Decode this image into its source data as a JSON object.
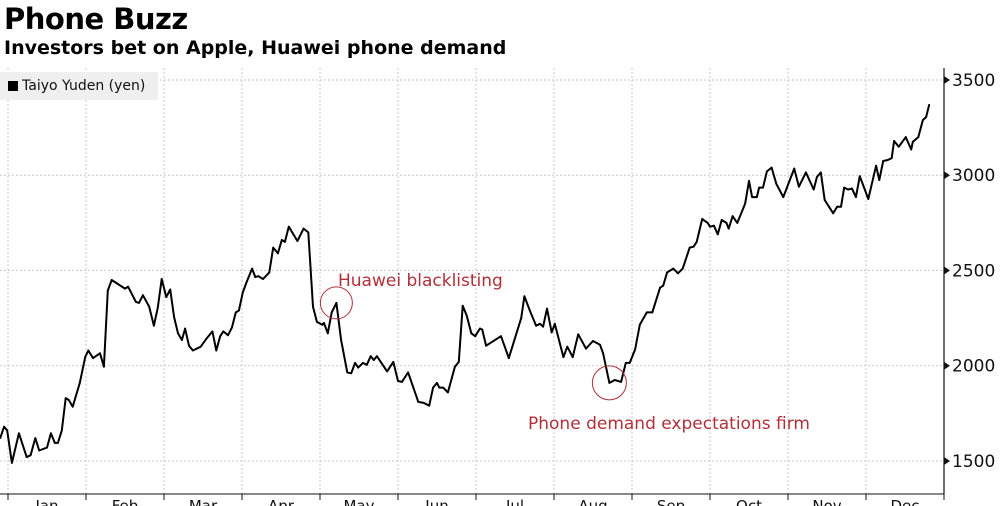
{
  "chart_data": {
    "type": "line",
    "title": "Phone Buzz",
    "subtitle": "Investors bet on Apple, Huawei phone demand",
    "xlabel": "",
    "ylabel": "",
    "x_unit": "months elapsed since the first labeled month tick",
    "x_tick_labels": [
      "Jan",
      "Feb",
      "Mar",
      "Apr",
      "May",
      "Jun",
      "Jul",
      "Aug",
      "Sep",
      "Oct",
      "Nov",
      "Dec"
    ],
    "y_ticks": [
      1500,
      2000,
      2500,
      3000,
      3500
    ],
    "ylim": [
      1280,
      3560
    ],
    "grid": true,
    "legend_position": "top-left",
    "series": [
      {
        "name": "Taiyo Yuden (yen)",
        "color": "#000000",
        "x": [
          -0.1,
          -0.05,
          -0.01,
          0.05,
          0.14,
          0.24,
          0.29,
          0.35,
          0.4,
          0.5,
          0.55,
          0.6,
          0.64,
          0.69,
          0.74,
          0.78,
          0.83,
          0.92,
          0.99,
          1.03,
          1.09,
          1.18,
          1.23,
          1.28,
          1.33,
          1.5,
          1.54,
          1.64,
          1.68,
          1.73,
          1.81,
          1.87,
          1.92,
          1.97,
          2.03,
          2.08,
          2.13,
          2.18,
          2.23,
          2.27,
          2.32,
          2.37,
          2.47,
          2.55,
          2.62,
          2.67,
          2.72,
          2.76,
          2.82,
          2.87,
          2.92,
          2.96,
          3.01,
          3.06,
          3.13,
          3.17,
          3.21,
          3.27,
          3.35,
          3.4,
          3.46,
          3.51,
          3.55,
          3.6,
          3.71,
          3.79,
          3.85,
          3.91,
          3.96,
          4.03,
          4.05,
          4.1,
          4.15,
          4.21,
          4.27,
          4.35,
          4.4,
          4.45,
          4.49,
          4.55,
          4.6,
          4.65,
          4.69,
          4.73,
          4.86,
          4.94,
          5.0,
          5.05,
          5.13,
          5.26,
          5.33,
          5.4,
          5.45,
          5.5,
          5.53,
          5.58,
          5.64,
          5.73,
          5.78,
          5.83,
          5.88,
          5.94,
          5.99,
          6.05,
          6.08,
          6.13,
          6.32,
          6.42,
          6.58,
          6.62,
          6.69,
          6.77,
          6.82,
          6.86,
          6.91,
          6.97,
          7.01,
          7.12,
          7.17,
          7.24,
          7.31,
          7.41,
          7.5,
          7.59,
          7.63,
          7.71,
          7.78,
          7.86,
          7.92,
          7.97,
          8.04,
          8.1,
          8.19,
          8.26,
          8.36,
          8.4,
          8.45,
          8.53,
          8.59,
          8.65,
          8.74,
          8.79,
          8.83,
          8.9,
          8.97,
          9.0,
          9.05,
          9.1,
          9.15,
          9.21,
          9.24,
          9.29,
          9.35,
          9.45,
          9.5,
          9.54,
          9.6,
          9.63,
          9.68,
          9.73,
          9.79,
          9.85,
          9.94,
          10.08,
          10.14,
          10.23,
          10.33,
          10.37,
          10.42,
          10.47,
          10.58,
          10.63,
          10.68,
          10.72,
          10.77,
          10.82,
          10.87,
          10.92,
          11.03,
          11.13,
          11.17,
          11.22,
          11.28,
          11.33,
          11.36,
          11.42,
          11.51,
          11.58,
          11.6,
          11.67,
          11.73,
          11.77,
          11.81
        ],
        "values": [
          1620,
          1680,
          1660,
          1490,
          1645,
          1520,
          1530,
          1620,
          1555,
          1570,
          1645,
          1595,
          1595,
          1660,
          1830,
          1820,
          1785,
          1910,
          2045,
          2080,
          2040,
          2065,
          1995,
          2395,
          2450,
          2405,
          2415,
          2335,
          2330,
          2370,
          2310,
          2210,
          2305,
          2455,
          2360,
          2400,
          2255,
          2170,
          2135,
          2195,
          2105,
          2080,
          2100,
          2145,
          2180,
          2080,
          2155,
          2180,
          2160,
          2200,
          2280,
          2290,
          2385,
          2440,
          2510,
          2465,
          2470,
          2455,
          2490,
          2620,
          2590,
          2660,
          2650,
          2730,
          2655,
          2720,
          2700,
          2310,
          2230,
          2215,
          2225,
          2170,
          2280,
          2330,
          2135,
          1965,
          1960,
          2015,
          1990,
          2015,
          2005,
          2050,
          2030,
          2050,
          1970,
          2020,
          1920,
          1915,
          1965,
          1810,
          1805,
          1790,
          1885,
          1910,
          1885,
          1885,
          1860,
          1995,
          2020,
          2315,
          2265,
          2170,
          2155,
          2195,
          2190,
          2105,
          2155,
          2040,
          2250,
          2365,
          2290,
          2210,
          2220,
          2205,
          2300,
          2175,
          2220,
          2045,
          2100,
          2045,
          2165,
          2090,
          2130,
          2110,
          2065,
          1910,
          1925,
          1915,
          2015,
          2015,
          2085,
          2215,
          2280,
          2280,
          2410,
          2420,
          2490,
          2510,
          2485,
          2510,
          2620,
          2625,
          2650,
          2770,
          2750,
          2730,
          2735,
          2690,
          2765,
          2750,
          2720,
          2785,
          2750,
          2850,
          2970,
          2885,
          2885,
          2935,
          2935,
          3020,
          3040,
          2955,
          2885,
          3035,
          2940,
          3015,
          2925,
          2990,
          3015,
          2870,
          2800,
          2835,
          2835,
          2935,
          2925,
          2930,
          2885,
          2995,
          2875,
          3050,
          2975,
          3075,
          3080,
          3090,
          3180,
          3150,
          3200,
          3135,
          3175,
          3200,
          3290,
          3305,
          3370
        ]
      }
    ],
    "annotations": [
      {
        "text": "Huawei blacklisting",
        "x": 4.21,
        "value": 2330,
        "color": "#b0303a"
      },
      {
        "text": "Phone demand expectations firm",
        "x": 7.71,
        "value": 1910,
        "color": "#b0303a"
      }
    ]
  }
}
